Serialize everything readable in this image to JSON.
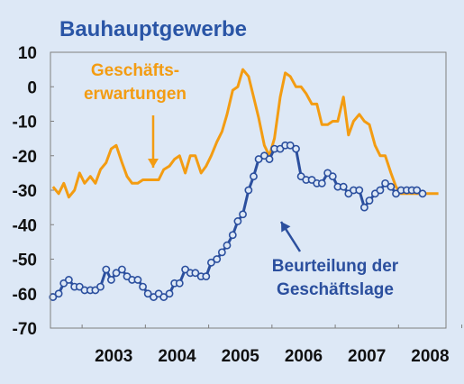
{
  "chart_data": {
    "type": "line",
    "title": "Bauhauptgewerbe",
    "xlabel": "",
    "ylabel": "",
    "ylim": [
      -70,
      10
    ],
    "yticks": [
      10,
      0,
      -10,
      -20,
      -30,
      -40,
      -50,
      -60,
      -70
    ],
    "xlim": [
      2002.5,
      2008.75
    ],
    "year_labels": [
      "2003",
      "2004",
      "2005",
      "2006",
      "2007",
      "2008"
    ],
    "grid": false,
    "colors": {
      "background": "#dde8f6",
      "title": "#2a55a6",
      "axis_text": "#111111",
      "frame": "#7f7f7f"
    },
    "series": [
      {
        "name": "Geschäftserwartungen",
        "label_lines": [
          "Geschäfts-",
          "erwartungen"
        ],
        "color": "#f39c12",
        "marker": "none",
        "x": [
          2002.54,
          2002.63,
          2002.71,
          2002.79,
          2002.88,
          2002.96,
          2003.04,
          2003.13,
          2003.21,
          2003.29,
          2003.38,
          2003.46,
          2003.54,
          2003.63,
          2003.71,
          2003.79,
          2003.88,
          2003.96,
          2004.04,
          2004.13,
          2004.21,
          2004.29,
          2004.38,
          2004.46,
          2004.54,
          2004.63,
          2004.71,
          2004.79,
          2004.88,
          2004.96,
          2005.04,
          2005.13,
          2005.21,
          2005.29,
          2005.38,
          2005.46,
          2005.54,
          2005.63,
          2005.71,
          2005.79,
          2005.88,
          2005.96,
          2006.04,
          2006.13,
          2006.21,
          2006.29,
          2006.38,
          2006.46,
          2006.54,
          2006.63,
          2006.71,
          2006.79,
          2006.88,
          2006.96,
          2007.04,
          2007.13,
          2007.21,
          2007.29,
          2007.38,
          2007.46,
          2007.54,
          2007.63,
          2007.71,
          2007.79,
          2007.88,
          2007.96,
          2008.04,
          2008.13,
          2008.21,
          2008.29,
          2008.38,
          2008.46,
          2008.54,
          2008.63
        ],
        "values": [
          -29,
          -31,
          -28,
          -32,
          -30,
          -25,
          -28,
          -26,
          -28,
          -24,
          -22,
          -18,
          -17,
          -22,
          -26,
          -28,
          -28,
          -27,
          -27,
          -27,
          -27,
          -24,
          -23,
          -21,
          -20,
          -25,
          -20,
          -20,
          -25,
          -23,
          -20,
          -16,
          -13,
          -8,
          -1,
          0,
          5,
          3,
          -3,
          -9,
          -17,
          -20,
          -15,
          -3,
          4,
          3,
          0,
          0,
          -2,
          -5,
          -5,
          -11,
          -11,
          -10,
          -10,
          -3,
          -14,
          -10,
          -8,
          -10,
          -11,
          -17,
          -20,
          -20,
          -25,
          -29,
          -31,
          -31,
          -31,
          -31,
          -31,
          -31,
          -31,
          -31
        ]
      },
      {
        "name": "Beurteilung der Geschäftslage",
        "label_lines": [
          "Beurteilung der",
          "Geschäftslage"
        ],
        "color": "#2b4f9e",
        "marker": "circle",
        "x": [
          2002.54,
          2002.63,
          2002.71,
          2002.79,
          2002.88,
          2002.96,
          2003.04,
          2003.13,
          2003.21,
          2003.29,
          2003.38,
          2003.46,
          2003.54,
          2003.63,
          2003.71,
          2003.79,
          2003.88,
          2003.96,
          2004.04,
          2004.13,
          2004.21,
          2004.29,
          2004.38,
          2004.46,
          2004.54,
          2004.63,
          2004.71,
          2004.79,
          2004.88,
          2004.96,
          2005.04,
          2005.13,
          2005.21,
          2005.29,
          2005.38,
          2005.46,
          2005.54,
          2005.63,
          2005.71,
          2005.79,
          2005.88,
          2005.96,
          2006.04,
          2006.13,
          2006.21,
          2006.29,
          2006.38,
          2006.46,
          2006.54,
          2006.63,
          2006.71,
          2006.79,
          2006.88,
          2006.96,
          2007.04,
          2007.13,
          2007.21,
          2007.29,
          2007.38,
          2007.46,
          2007.54,
          2007.63,
          2007.71,
          2007.79,
          2007.88,
          2007.96,
          2008.04,
          2008.13,
          2008.21,
          2008.29,
          2008.38
        ],
        "values": [
          -61,
          -60,
          -57,
          -56,
          -58,
          -58,
          -59,
          -59,
          -59,
          -58,
          -53,
          -56,
          -54,
          -53,
          -55,
          -56,
          -56,
          -58,
          -60,
          -61,
          -60,
          -61,
          -60,
          -57,
          -57,
          -53,
          -54,
          -54,
          -55,
          -55,
          -51,
          -50,
          -48,
          -46,
          -43,
          -39,
          -37,
          -30,
          -26,
          -21,
          -20,
          -21,
          -18,
          -18,
          -17,
          -17,
          -18,
          -26,
          -27,
          -27,
          -28,
          -28,
          -25,
          -26,
          -29,
          -29,
          -31,
          -30,
          -30,
          -35,
          -33,
          -31,
          -30,
          -28,
          -29,
          -31,
          -30,
          -30,
          -30,
          -30,
          -31
        ]
      }
    ]
  }
}
